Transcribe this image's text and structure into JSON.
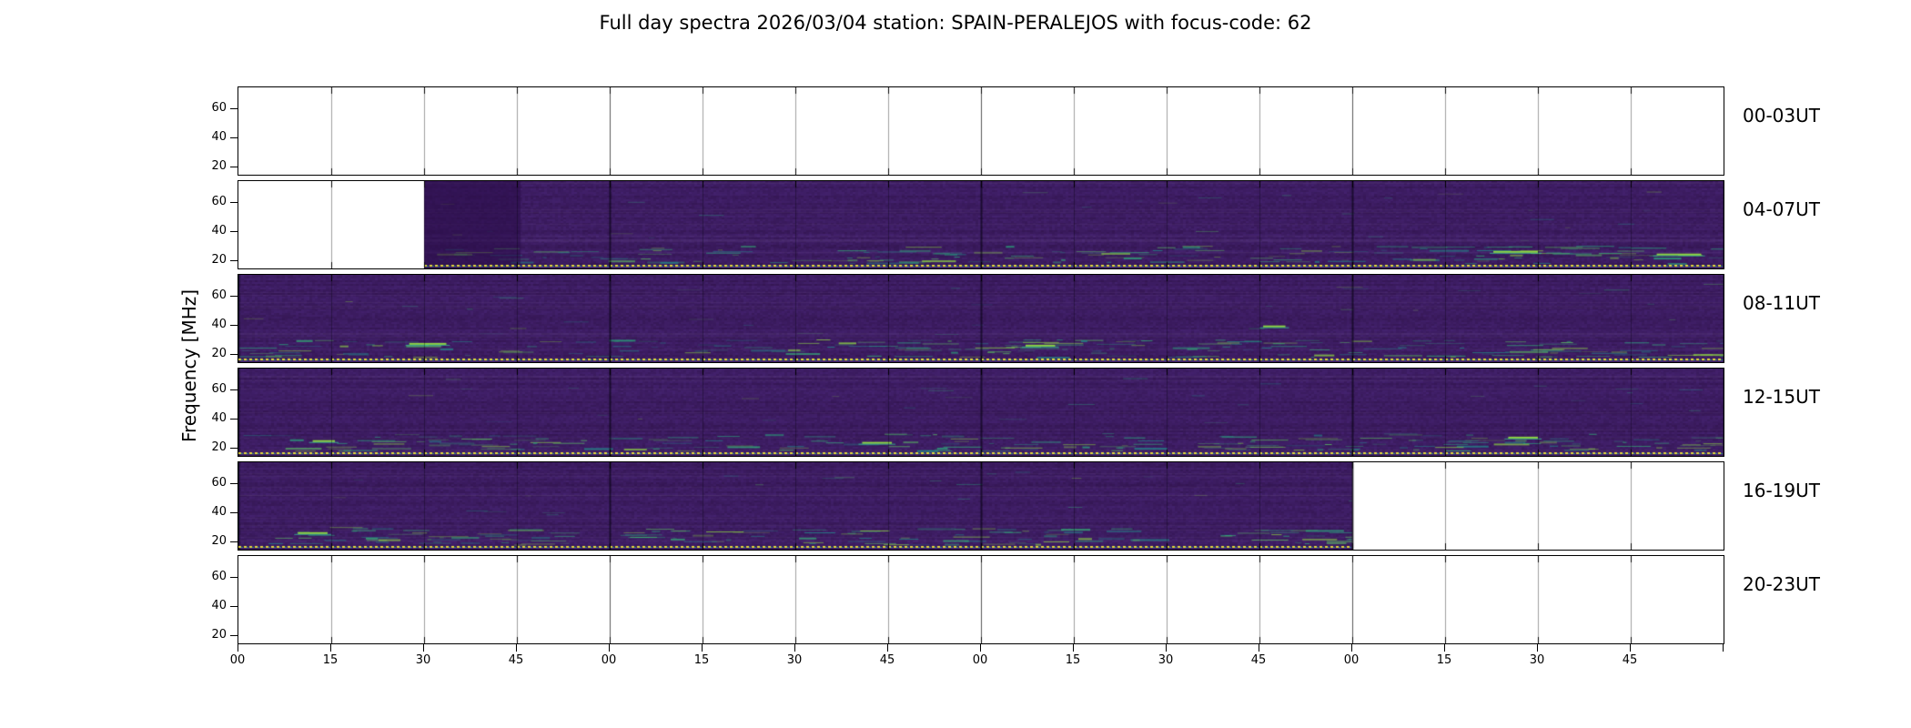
{
  "chart_data": {
    "type": "heatmap",
    "title": "Full day spectra 2026/03/04 station: SPAIN-PERALEJOS with focus-code: 62",
    "ylabel": "Frequency [MHz]",
    "xlabel": "",
    "y_ticks": [
      20,
      40,
      60
    ],
    "y_range": [
      15,
      75
    ],
    "x_tick_labels": [
      "00",
      "15",
      "30",
      "45",
      "00",
      "15",
      "30",
      "45",
      "00",
      "15",
      "30",
      "45",
      "00",
      "15",
      "30",
      "45"
    ],
    "minutes_per_tick": 15,
    "hours_per_panel": 4,
    "grid": true,
    "legend_position": "none",
    "colormap": "viridis",
    "colors": {
      "base_purple": "#3c1c60",
      "streak_teal": "#21918c",
      "streak_green": "#35b779",
      "streak_lime": "#8fd643",
      "marker_yellow": "#e3d93c",
      "axis": "#000000"
    },
    "panels": [
      {
        "label": "00-03UT",
        "coverage": null,
        "marker_line": false
      },
      {
        "label": "04-07UT",
        "coverage": {
          "start_frac": 0.125,
          "end_frac": 1.0
        },
        "dark_block": {
          "start_frac": 0.125,
          "end_frac": 0.19
        },
        "marker_line": true,
        "notable_streaks": [
          {
            "x": 0.845,
            "y": 0.8,
            "len": 0.03
          },
          {
            "x": 0.955,
            "y": 0.83,
            "len": 0.03
          }
        ]
      },
      {
        "label": "08-11UT",
        "coverage": {
          "start_frac": 0.0,
          "end_frac": 1.0
        },
        "marker_line": true,
        "notable_streaks": [
          {
            "x": 0.115,
            "y": 0.78,
            "len": 0.025
          },
          {
            "x": 0.53,
            "y": 0.8,
            "len": 0.02
          },
          {
            "x": 0.69,
            "y": 0.58,
            "len": 0.015
          }
        ]
      },
      {
        "label": "12-15UT",
        "coverage": {
          "start_frac": 0.0,
          "end_frac": 1.0
        },
        "marker_line": true,
        "notable_streaks": [
          {
            "x": 0.05,
            "y": 0.82,
            "len": 0.015
          },
          {
            "x": 0.42,
            "y": 0.84,
            "len": 0.02
          },
          {
            "x": 0.855,
            "y": 0.78,
            "len": 0.02
          }
        ]
      },
      {
        "label": "16-19UT",
        "coverage": {
          "start_frac": 0.0,
          "end_frac": 0.75
        },
        "marker_line": true,
        "notable_streaks": [
          {
            "x": 0.04,
            "y": 0.8,
            "len": 0.02
          }
        ]
      },
      {
        "label": "20-23UT",
        "coverage": null,
        "marker_line": false
      }
    ]
  }
}
